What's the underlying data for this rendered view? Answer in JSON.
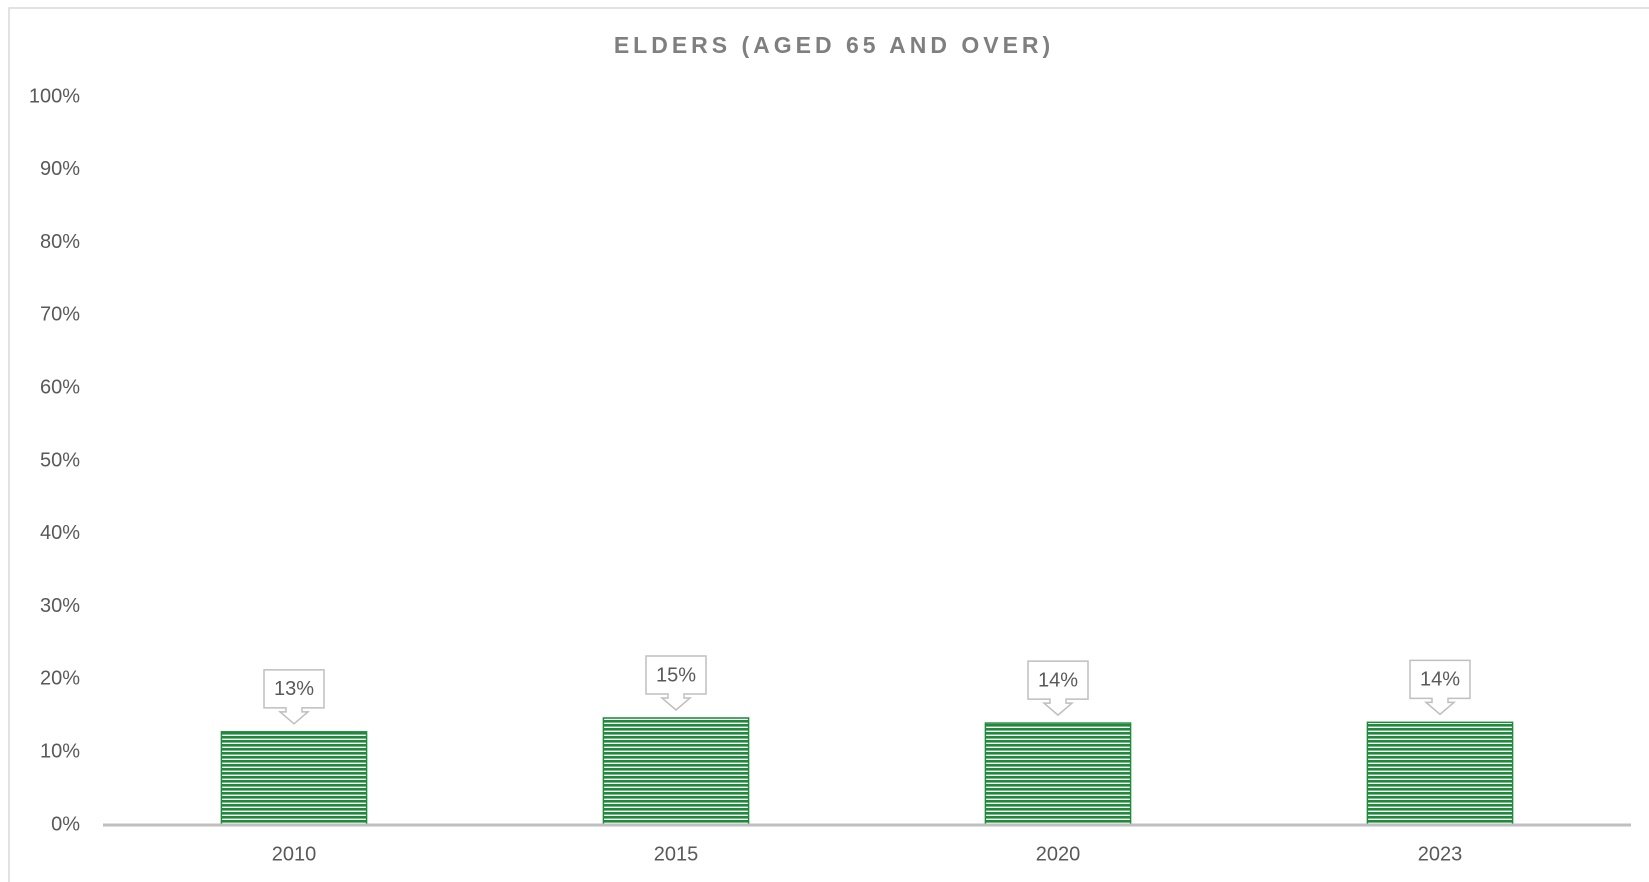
{
  "chart_data": {
    "type": "bar",
    "title": "ELDERS (AGED 65 AND OVER)",
    "categories": [
      "2010",
      "2015",
      "2020",
      "2023"
    ],
    "values": [
      12.8,
      14.7,
      14.0,
      14.1
    ],
    "value_labels": [
      "13%",
      "15%",
      "14%",
      "14%"
    ],
    "color": "#1f8a3b",
    "ylim": [
      0,
      100
    ],
    "yticks": [
      {
        "value": 0,
        "label": "0%"
      },
      {
        "value": 10,
        "label": "10%"
      },
      {
        "value": 20,
        "label": "20%"
      },
      {
        "value": 30,
        "label": "30%"
      },
      {
        "value": 40,
        "label": "40%"
      },
      {
        "value": 50,
        "label": "50%"
      },
      {
        "value": 60,
        "label": "60%"
      },
      {
        "value": 70,
        "label": "70%"
      },
      {
        "value": 80,
        "label": "80%"
      },
      {
        "value": 90,
        "label": "90%"
      },
      {
        "value": 100,
        "label": "100%"
      }
    ],
    "grid": false
  }
}
